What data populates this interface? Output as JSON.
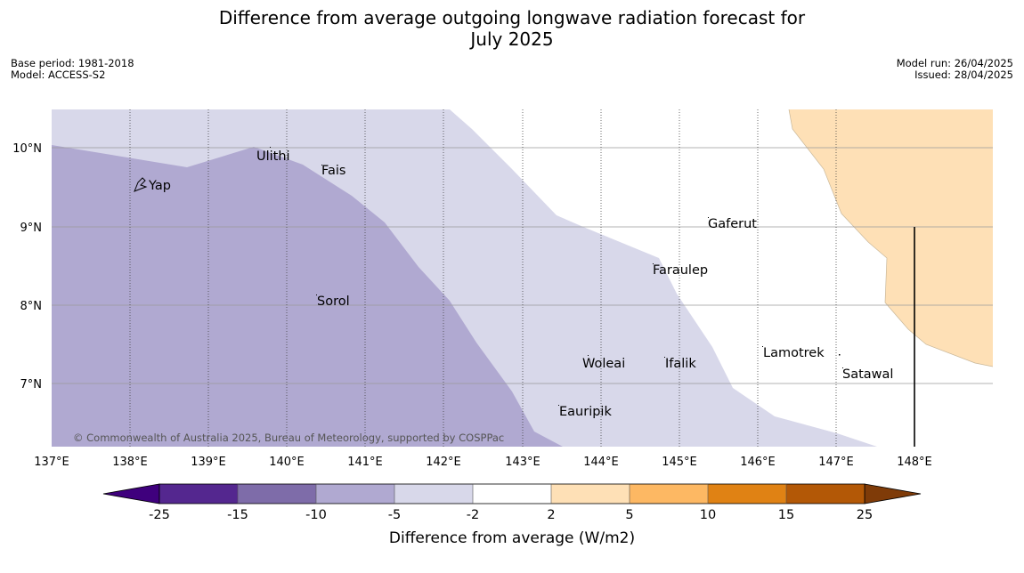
{
  "title_line1": "Difference from average outgoing longwave radiation forecast for",
  "title_line2": "July 2025",
  "base_period": "Base period: 1981-2018",
  "model": "Model: ACCESS-S2",
  "model_run": "Model run: 26/04/2025",
  "issued": "Issued: 28/04/2025",
  "copyright": "© Commonwealth of Australia 2025, Bureau of Meteorology, supported by COSPPac",
  "lat_labels": [
    "10°N",
    "9°N",
    "8°N",
    "7°N"
  ],
  "lon_labels": [
    "137°E",
    "138°E",
    "139°E",
    "140°E",
    "141°E",
    "142°E",
    "143°E",
    "144°E",
    "145°E",
    "146°E",
    "147°E",
    "148°E"
  ],
  "places": [
    "Yap",
    "Ulithi",
    "Fais",
    "Gaferut",
    "Faraulep",
    "Sorol",
    "Woleai",
    "Ifalik",
    "Lamotrek",
    "Satawal",
    "Eauripik"
  ],
  "colorbar": {
    "title": "Difference from average (W/m2)",
    "ticks": [
      "-25",
      "-15",
      "-10",
      "-5",
      "-2",
      "2",
      "5",
      "10",
      "15",
      "25"
    ],
    "colors": [
      "#3f007d",
      "#54278f",
      "#7e6ca9",
      "#b0a9d1",
      "#d8d8ea",
      "#ffffff",
      "#fee0b6",
      "#fdb863",
      "#e08214",
      "#b35806",
      "#7f3b08"
    ]
  }
}
